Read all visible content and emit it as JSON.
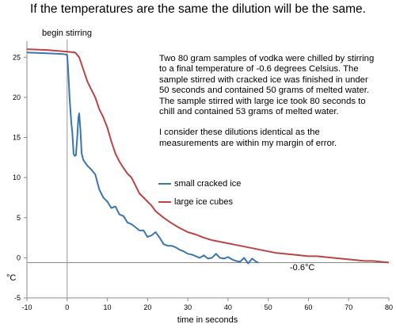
{
  "title": "If the temperatures are the same the dilution will be the same.",
  "annotations": {
    "begin_stirring": "begin stirring",
    "final_temp": "-0.6°C",
    "note_paragraph_1": "Two 80 gram samples of vodka were chilled by stirring to a final temperature of -0.6 degrees Celsius. The sample stirred with cracked ice was finished in under 50 seconds and contained 50 grams of melted water. The sample stirred with large ice took 80 seconds to chill and contained 53 grams of melted water.",
    "note_paragraph_2": "I consider these dilutions identical as the measurements are within my margin of error."
  },
  "chart_data": {
    "type": "line",
    "xlabel": "time in seconds",
    "ylabel": "°C",
    "xlim": [
      -10,
      80
    ],
    "ylim": [
      -5,
      27
    ],
    "x_ticks": [
      -10,
      0,
      10,
      20,
      30,
      40,
      50,
      60,
      70,
      80
    ],
    "y_ticks": [
      -5,
      0,
      5,
      10,
      15,
      20,
      25
    ],
    "reference_lines": {
      "vertical_x": 0,
      "horizontal_y": -0.6
    },
    "legend_position": "middle",
    "series": [
      {
        "name": "small cracked ice",
        "color": "#3a75b0",
        "points": [
          [
            -10,
            25.6
          ],
          [
            -5,
            25.5
          ],
          [
            -1,
            25.4
          ],
          [
            0,
            25.3
          ],
          [
            0.3,
            23
          ],
          [
            0.6,
            20
          ],
          [
            1,
            17
          ],
          [
            1.3,
            15.5
          ],
          [
            1.6,
            13
          ],
          [
            1.9,
            12.7
          ],
          [
            2.2,
            12.8
          ],
          [
            2.5,
            15
          ],
          [
            2.8,
            17.5
          ],
          [
            3,
            18
          ],
          [
            3.3,
            16
          ],
          [
            3.6,
            13
          ],
          [
            4,
            12.2
          ],
          [
            5,
            11.5
          ],
          [
            6,
            11
          ],
          [
            7,
            10.4
          ],
          [
            8,
            8.5
          ],
          [
            9,
            7.5
          ],
          [
            10,
            7
          ],
          [
            11,
            6.2
          ],
          [
            12,
            6.4
          ],
          [
            13,
            5.4
          ],
          [
            14,
            5.2
          ],
          [
            15,
            4.4
          ],
          [
            16,
            4.2
          ],
          [
            17,
            3.8
          ],
          [
            18,
            3.4
          ],
          [
            19,
            3.4
          ],
          [
            20,
            2.6
          ],
          [
            21,
            2.8
          ],
          [
            22,
            3.2
          ],
          [
            23,
            2.5
          ],
          [
            24,
            1.7
          ],
          [
            25,
            1.5
          ],
          [
            26,
            1.5
          ],
          [
            27,
            1.3
          ],
          [
            28,
            1.0
          ],
          [
            29,
            0.8
          ],
          [
            30,
            0.5
          ],
          [
            31,
            0.4
          ],
          [
            32,
            0.2
          ],
          [
            33,
            0.0
          ],
          [
            34,
            0.3
          ],
          [
            35,
            -0.1
          ],
          [
            36,
            0.0
          ],
          [
            37,
            0.5
          ],
          [
            38,
            0.0
          ],
          [
            39,
            -0.1
          ],
          [
            40,
            0.1
          ],
          [
            41,
            -0.2
          ],
          [
            42,
            -0.4
          ],
          [
            43,
            -0.5
          ],
          [
            44,
            0.0
          ],
          [
            45,
            -0.7
          ],
          [
            46,
            -0.1
          ],
          [
            47,
            -0.5
          ],
          [
            47.5,
            -0.6
          ]
        ]
      },
      {
        "name": "large ice cubes",
        "color": "#bb4444",
        "points": [
          [
            -10,
            26.0
          ],
          [
            -5,
            25.9
          ],
          [
            0,
            25.7
          ],
          [
            2,
            25.6
          ],
          [
            3,
            25.0
          ],
          [
            4,
            23.5
          ],
          [
            5,
            22.0
          ],
          [
            6,
            21.0
          ],
          [
            7,
            20.0
          ],
          [
            8,
            18.5
          ],
          [
            9,
            17.5
          ],
          [
            10,
            16.2
          ],
          [
            11,
            14.5
          ],
          [
            12,
            13.0
          ],
          [
            13,
            12.0
          ],
          [
            14,
            11.2
          ],
          [
            15,
            10.5
          ],
          [
            16,
            10.0
          ],
          [
            17,
            9.0
          ],
          [
            18,
            8.0
          ],
          [
            19,
            7.5
          ],
          [
            20,
            7.0
          ],
          [
            21,
            6.5
          ],
          [
            22,
            5.8
          ],
          [
            24,
            5.0
          ],
          [
            26,
            4.3
          ],
          [
            28,
            3.7
          ],
          [
            30,
            3.2
          ],
          [
            32,
            2.9
          ],
          [
            34,
            2.5
          ],
          [
            36,
            2.2
          ],
          [
            38,
            2.0
          ],
          [
            40,
            1.8
          ],
          [
            42,
            1.6
          ],
          [
            44,
            1.4
          ],
          [
            46,
            1.2
          ],
          [
            48,
            1.0
          ],
          [
            50,
            0.8
          ],
          [
            52,
            0.6
          ],
          [
            54,
            0.5
          ],
          [
            56,
            0.4
          ],
          [
            58,
            0.3
          ],
          [
            60,
            0.2
          ],
          [
            62,
            0.2
          ],
          [
            64,
            0.1
          ],
          [
            66,
            0.0
          ],
          [
            68,
            -0.1
          ],
          [
            70,
            -0.2
          ],
          [
            72,
            -0.3
          ],
          [
            74,
            -0.4
          ],
          [
            76,
            -0.4
          ],
          [
            78,
            -0.5
          ],
          [
            80,
            -0.6
          ]
        ]
      }
    ]
  }
}
